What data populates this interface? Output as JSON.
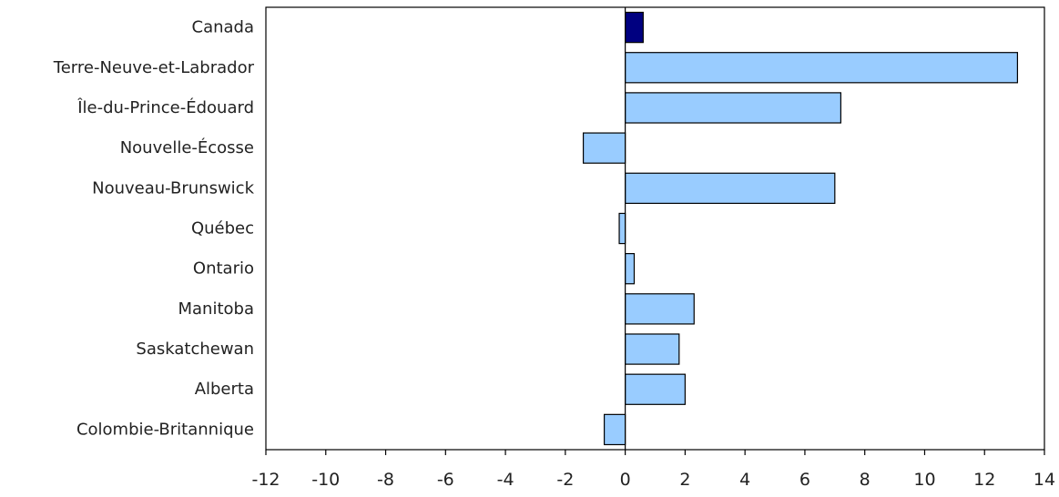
{
  "chart_data": {
    "type": "bar",
    "orientation": "horizontal",
    "title": "",
    "xlabel": "",
    "ylabel": "",
    "categories": [
      "Canada",
      "Terre-Neuve-et-Labrador",
      "Île-du-Prince-Édouard",
      "Nouvelle-Écosse",
      "Nouveau-Brunswick",
      "Québec",
      "Ontario",
      "Manitoba",
      "Saskatchewan",
      "Alberta",
      "Colombie-Britannique"
    ],
    "values": [
      0.6,
      13.1,
      7.2,
      -1.4,
      7.0,
      -0.2,
      0.3,
      2.3,
      1.8,
      2.0,
      -0.7
    ],
    "bar_colors": [
      "#000080",
      "#99ccff",
      "#99ccff",
      "#99ccff",
      "#99ccff",
      "#99ccff",
      "#99ccff",
      "#99ccff",
      "#99ccff",
      "#99ccff",
      "#99ccff"
    ],
    "xlim": [
      -12,
      14
    ],
    "xticks": [
      -12,
      -10,
      -8,
      -6,
      -4,
      -2,
      0,
      2,
      4,
      6,
      8,
      10,
      12,
      14
    ],
    "grid": false,
    "legend": "none"
  }
}
